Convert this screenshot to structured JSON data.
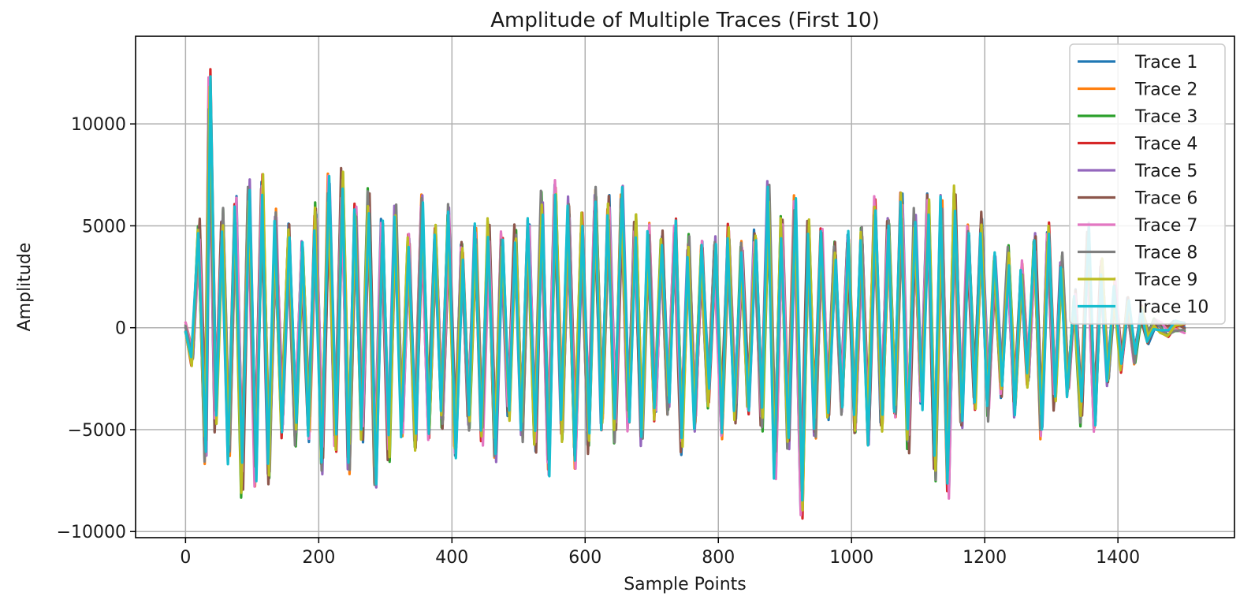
{
  "chart_data": {
    "type": "line",
    "title": "Amplitude of Multiple Traces (First 10)",
    "xlabel": "Sample Points",
    "ylabel": "Amplitude",
    "xlim": [
      -75,
      1575
    ],
    "ylim": [
      -10300,
      14300
    ],
    "x_ticks": [
      0,
      200,
      400,
      600,
      800,
      1000,
      1200,
      1400
    ],
    "x_tick_labels": [
      "0",
      "200",
      "400",
      "600",
      "800",
      "1000",
      "1200",
      "1400"
    ],
    "y_ticks": [
      -10000,
      -5000,
      0,
      5000,
      10000
    ],
    "y_tick_labels": [
      "−10000",
      "−5000",
      "0",
      "5000",
      "10000"
    ],
    "grid": true,
    "legend_position": "top-right",
    "x": [
      0,
      10,
      20,
      30,
      36,
      45,
      55,
      65,
      75,
      85,
      95,
      105,
      115,
      125,
      135,
      145,
      155,
      165,
      175,
      185,
      195,
      205,
      215,
      225,
      235,
      245,
      255,
      265,
      275,
      285,
      295,
      305,
      315,
      325,
      335,
      345,
      355,
      365,
      375,
      385,
      395,
      405,
      415,
      425,
      435,
      445,
      455,
      465,
      475,
      485,
      495,
      505,
      515,
      525,
      535,
      545,
      555,
      565,
      575,
      585,
      595,
      605,
      615,
      625,
      635,
      645,
      655,
      665,
      675,
      685,
      695,
      705,
      715,
      725,
      735,
      745,
      755,
      765,
      775,
      785,
      795,
      805,
      815,
      825,
      835,
      845,
      855,
      865,
      875,
      885,
      895,
      905,
      915,
      925,
      935,
      945,
      955,
      965,
      975,
      985,
      995,
      1005,
      1015,
      1025,
      1035,
      1045,
      1055,
      1065,
      1075,
      1085,
      1095,
      1105,
      1115,
      1125,
      1135,
      1145,
      1155,
      1165,
      1175,
      1185,
      1195,
      1205,
      1215,
      1225,
      1235,
      1245,
      1255,
      1265,
      1275,
      1285,
      1295,
      1305,
      1315,
      1325,
      1335,
      1345,
      1355,
      1365,
      1375,
      1385,
      1395,
      1405,
      1415,
      1425,
      1435,
      1445,
      1455,
      1465,
      1475,
      1485,
      1500
    ],
    "base_values": [
      0,
      -1500,
      4800,
      -6000,
      11500,
      -4500,
      5200,
      -6000,
      5800,
      -7500,
      6500,
      -7000,
      6800,
      -7000,
      5200,
      -4800,
      4500,
      -5200,
      3800,
      -5000,
      5500,
      -6500,
      6800,
      -5500,
      7200,
      -6500,
      5500,
      -5000,
      6200,
      -7200,
      4800,
      -6000,
      5500,
      -4800,
      4200,
      -5500,
      6000,
      -5000,
      4500,
      -4500,
      5500,
      -5800,
      3800,
      -4500,
      4500,
      -5200,
      4800,
      -6000,
      4200,
      -4000,
      4500,
      -5000,
      4800,
      -5500,
      6000,
      -6500,
      6500,
      -5000,
      5800,
      -6200,
      5000,
      -5500,
      6200,
      -4500,
      5800,
      -5000,
      6200,
      -4500,
      5000,
      -5200,
      4500,
      -4000,
      4200,
      -3800,
      4800,
      -5500,
      4000,
      -4500,
      3800,
      -3500,
      4000,
      -4800,
      4500,
      -4200,
      3800,
      -3800,
      4200,
      -4500,
      6500,
      -6800,
      5000,
      -5500,
      5800,
      -8500,
      4800,
      -5000,
      4500,
      -4000,
      3800,
      -3800,
      4200,
      -4800,
      4500,
      -5200,
      5800,
      -4500,
      5000,
      -4000,
      6000,
      -5500,
      5200,
      -3500,
      6000,
      -6800,
      5800,
      -7500,
      6200,
      -4500,
      4500,
      -3500,
      5000,
      -4000,
      3200,
      -3000,
      3500,
      -3800,
      2800,
      -2500,
      4200,
      -4800,
      4500,
      -3500,
      3200,
      -3000,
      1500,
      -4200,
      4500,
      -4500,
      3000,
      -2500,
      2000,
      -1800,
      1200,
      -1500,
      800,
      -500,
      200,
      0,
      -200,
      100,
      0
    ],
    "series": [
      {
        "name": "Trace 1",
        "color": "#1f77b4"
      },
      {
        "name": "Trace 2",
        "color": "#ff7f0e"
      },
      {
        "name": "Trace 3",
        "color": "#2ca02c"
      },
      {
        "name": "Trace 4",
        "color": "#d62728"
      },
      {
        "name": "Trace 5",
        "color": "#9467bd"
      },
      {
        "name": "Trace 6",
        "color": "#8c564b"
      },
      {
        "name": "Trace 7",
        "color": "#e377c2"
      },
      {
        "name": "Trace 8",
        "color": "#7f7f7f"
      },
      {
        "name": "Trace 9",
        "color": "#bcbd22"
      },
      {
        "name": "Trace 10",
        "color": "#17becf"
      }
    ]
  }
}
